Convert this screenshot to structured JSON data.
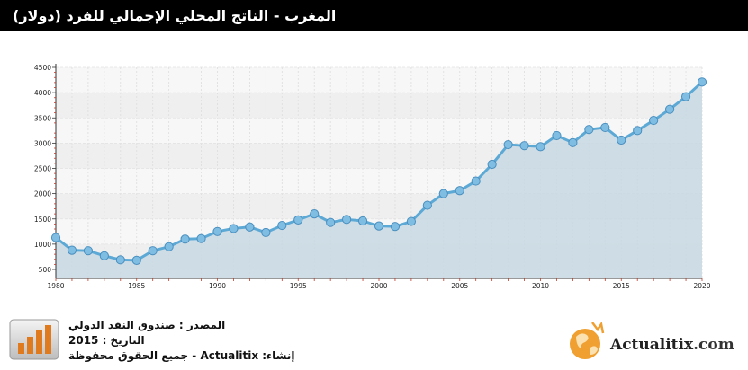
{
  "title": "المغرب - الناتج المحلي الإجمالي للفرد (دولار)",
  "footer": {
    "source": "المصدر : صندوق النقد الدولي",
    "date": "التاريخ : 2015",
    "credit": "إنشاء:  Actualitix - جميع الحقوق محفوظة"
  },
  "logo": {
    "brand": "Actualitix",
    "domain": ".com"
  },
  "colors": {
    "line": "#5da9d6",
    "marker": "#7fbde3",
    "area": "#c8d8e3",
    "header": "#000000",
    "logo_orange": "#f0a030"
  },
  "icons": [
    "bar-chart-icon",
    "globe-logo-icon"
  ],
  "chart_data": {
    "type": "area",
    "title": "",
    "xlabel": "",
    "ylabel": "",
    "x": [
      1980,
      1981,
      1982,
      1983,
      1984,
      1985,
      1986,
      1987,
      1988,
      1989,
      1990,
      1991,
      1992,
      1993,
      1994,
      1995,
      1996,
      1997,
      1998,
      1999,
      2000,
      2001,
      2002,
      2003,
      2004,
      2005,
      2006,
      2007,
      2008,
      2009,
      2010,
      2011,
      2012,
      2013,
      2014,
      2015,
      2016,
      2017,
      2018,
      2019,
      2020
    ],
    "series": [
      {
        "name": "",
        "values": [
          1130,
          880,
          870,
          770,
          690,
          680,
          870,
          950,
          1100,
          1110,
          1250,
          1310,
          1340,
          1230,
          1370,
          1480,
          1600,
          1430,
          1490,
          1460,
          1360,
          1350,
          1450,
          1770,
          2000,
          2060,
          2250,
          2580,
          2970,
          2950,
          2930,
          3150,
          3010,
          3270,
          3310,
          3060,
          3250,
          3450,
          3670,
          3920,
          4210
        ]
      }
    ],
    "xlim": [
      1980,
      2020
    ],
    "ylim": [
      500,
      4500
    ],
    "xticks": [
      "1980",
      "1985",
      "1990",
      "1995",
      "2000",
      "2005",
      "2010",
      "2015",
      "2020"
    ],
    "yticks": [
      "500",
      "1000",
      "1500",
      "2000",
      "2500",
      "3000",
      "3500",
      "4000",
      "4500"
    ],
    "grid": true,
    "legend": "none"
  }
}
